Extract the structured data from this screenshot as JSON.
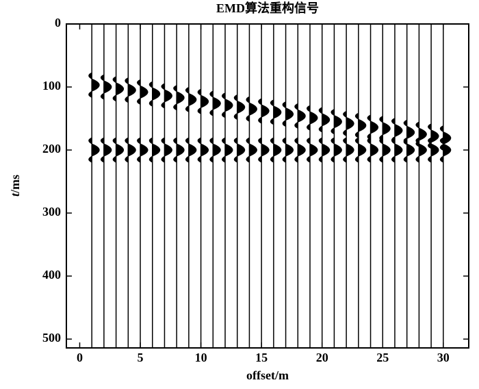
{
  "chart_data": {
    "type": "wiggle",
    "title": "EMD算法重构信号",
    "xlabel": "offset/m",
    "ylabel_italic": "t",
    "ylabel": "/ms",
    "traces": [
      1,
      2,
      3,
      4,
      5,
      6,
      7,
      8,
      9,
      10,
      11,
      12,
      13,
      14,
      15,
      16,
      17,
      18,
      19,
      20,
      21,
      22,
      23,
      24,
      25,
      26,
      27,
      28,
      29,
      30
    ],
    "events": [
      {
        "values": [
          97,
          100,
          103,
          105,
          108,
          111,
          114,
          117,
          120,
          123,
          126,
          129,
          132,
          135,
          138,
          140,
          143,
          146,
          149,
          152,
          155,
          158,
          161,
          164,
          166,
          169,
          172,
          175,
          178,
          181
        ]
      },
      {
        "values": [
          200,
          200,
          200,
          200,
          200,
          200,
          200,
          200,
          200,
          200,
          200,
          200,
          200,
          200,
          200,
          200,
          200,
          200,
          200,
          200,
          200,
          200,
          200,
          200,
          200,
          200,
          200,
          200,
          200,
          200
        ]
      }
    ],
    "color": "#000000",
    "xlim": [
      -1.1,
      32.1
    ],
    "ylim": [
      514,
      0
    ],
    "xticks": [
      0,
      5,
      10,
      15,
      20,
      25,
      30
    ],
    "yticks": [
      0,
      100,
      200,
      300,
      400,
      500
    ]
  }
}
